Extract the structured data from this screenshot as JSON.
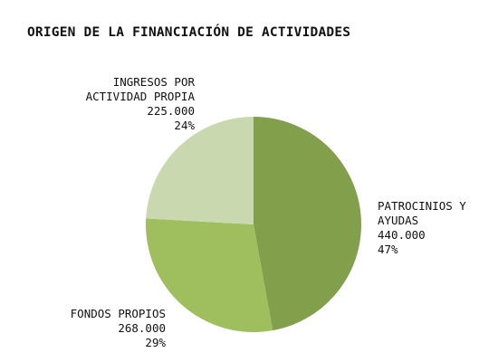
{
  "chart_data": {
    "type": "pie",
    "title": "ORIGEN DE LA FINANCIACIÓN DE ACTIVIDADES",
    "slices": [
      {
        "label_lines": [
          "PATROCINIOS Y",
          "AYUDAS"
        ],
        "value": 440000,
        "value_label": "440.000",
        "percent_label": "47%",
        "color": "#82a04c"
      },
      {
        "label_lines": [
          "FONDOS PROPIOS"
        ],
        "value": 268000,
        "value_label": "268.000",
        "percent_label": "29%",
        "color": "#9fbf5e"
      },
      {
        "label_lines": [
          "INGRESOS POR",
          "ACTIVIDAD PROPIA"
        ],
        "value": 225000,
        "value_label": "225.000",
        "percent_label": "24%",
        "color": "#c9d8af"
      }
    ],
    "start_position": "top",
    "direction": "clockwise",
    "legend": "none"
  }
}
